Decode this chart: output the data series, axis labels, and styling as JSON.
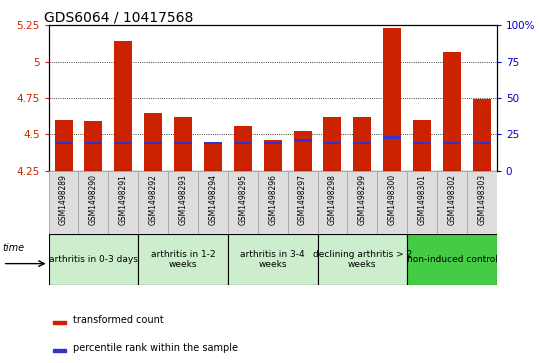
{
  "title": "GDS6064 / 10417568",
  "samples": [
    "GSM1498289",
    "GSM1498290",
    "GSM1498291",
    "GSM1498292",
    "GSM1498293",
    "GSM1498294",
    "GSM1498295",
    "GSM1498296",
    "GSM1498297",
    "GSM1498298",
    "GSM1498299",
    "GSM1498300",
    "GSM1498301",
    "GSM1498302",
    "GSM1498303"
  ],
  "transformed_count": [
    4.6,
    4.59,
    5.14,
    4.65,
    4.62,
    4.44,
    4.56,
    4.46,
    4.52,
    4.62,
    4.62,
    5.23,
    4.6,
    5.07,
    4.74
  ],
  "percentile_values": [
    4.43,
    4.43,
    4.43,
    4.43,
    4.43,
    4.43,
    4.43,
    4.43,
    4.45,
    4.43,
    4.43,
    4.47,
    4.43,
    4.43,
    4.43
  ],
  "bar_bottom": 4.25,
  "bar_color": "#cc2200",
  "blue_color": "#3333cc",
  "ylim": [
    4.25,
    5.25
  ],
  "yticks": [
    4.25,
    4.5,
    4.75,
    5.0,
    5.25
  ],
  "yticklabels": [
    "4.25",
    "4.5",
    "4.75",
    "5",
    "5.25"
  ],
  "grid_values": [
    4.5,
    4.75,
    5.0
  ],
  "right_yticks": [
    0,
    25,
    50,
    75,
    100
  ],
  "right_yticklabels": [
    "0",
    "25",
    "50",
    "75",
    "100%"
  ],
  "groups": [
    {
      "label": "arthritis in 0-3 days",
      "start": 0,
      "end": 3,
      "color": "#cceecc"
    },
    {
      "label": "arthritis in 1-2\nweeks",
      "start": 3,
      "end": 6,
      "color": "#cceecc"
    },
    {
      "label": "arthritis in 3-4\nweeks",
      "start": 6,
      "end": 9,
      "color": "#cceecc"
    },
    {
      "label": "declining arthritis > 2\nweeks",
      "start": 9,
      "end": 12,
      "color": "#cceecc"
    },
    {
      "label": "non-induced control",
      "start": 12,
      "end": 15,
      "color": "#44cc44"
    }
  ],
  "tick_color_left": "#cc2200",
  "tick_color_right": "#0000cc",
  "legend_red": "transformed count",
  "legend_blue": "percentile rank within the sample",
  "title_fontsize": 10,
  "gsm_fontsize": 5.5,
  "group_fontsize": 6.5
}
